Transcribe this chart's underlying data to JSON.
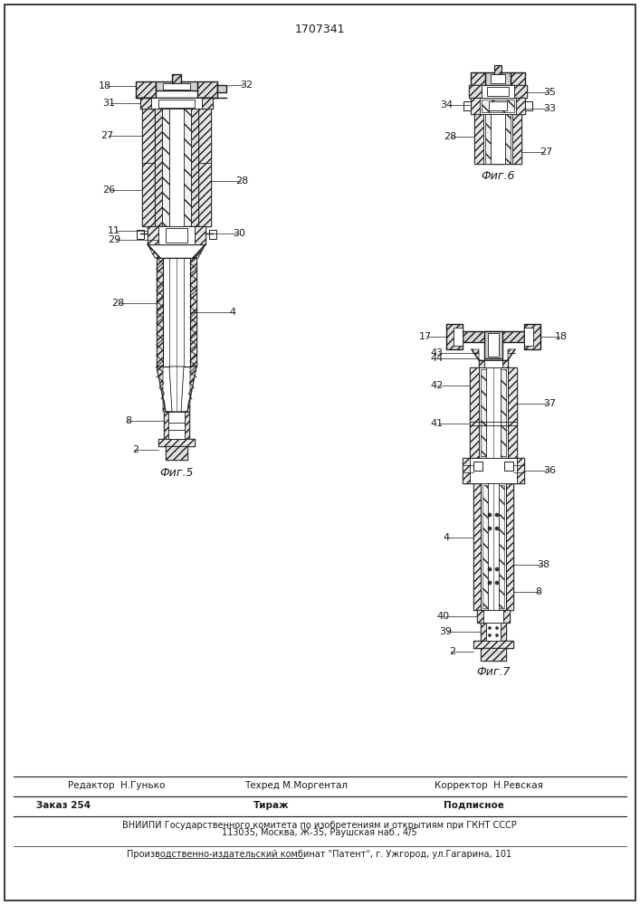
{
  "patent_number": "1707341",
  "bg_color": "#ffffff",
  "line_color": "#1a1a1a",
  "fig5_label": "Фиг.5",
  "fig6_label": "Фиг.6",
  "fig7_label": "Фиг.7",
  "editor_line": "Редактор  Н.Гунько",
  "techred_line": "Техред М.Моргентал",
  "corrector_line": "Корректор  Н.Ревская",
  "order_text": "Заказ 254",
  "tirazh_text": "Тираж",
  "podpisnoe_text": "Подписное",
  "vniiipi_line1": "ВНИИПИ Государственного комитета по изобретениям и открытиям при ГКНТ СССР",
  "vniiipi_line2": "113035, Москва, Ж-35, Раушская наб., 4/5",
  "publisher_line": "Производственно-издательский комбинат \"Патент\", г. Ужгород, ул.Гагарина, 101"
}
